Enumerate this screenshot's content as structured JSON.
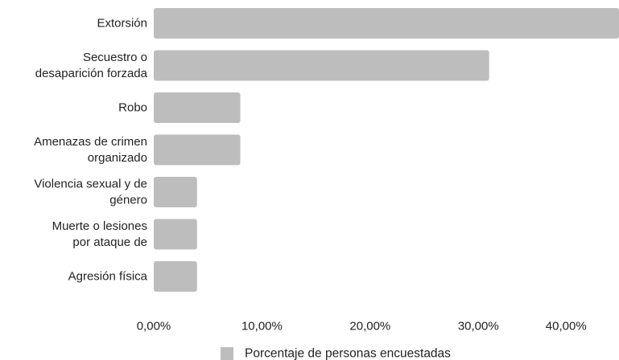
{
  "chart_data": {
    "type": "bar",
    "orientation": "horizontal",
    "categories": [
      [
        "Extorsión"
      ],
      [
        "Secuestro o",
        "desaparición forzada"
      ],
      [
        "Robo"
      ],
      [
        "Amenazas de crimen",
        "organizado"
      ],
      [
        "Violencia sexual y de",
        "género"
      ],
      [
        "Muerte o lesiones",
        "por ataque de"
      ],
      [
        "Agresión física"
      ]
    ],
    "series": [
      {
        "name": "Porcentaje de personas encuestadas",
        "values": [
          43.0,
          31.0,
          8.0,
          8.0,
          4.0,
          4.0,
          4.0
        ]
      }
    ],
    "xlim": [
      0,
      43
    ],
    "xticks": [
      0,
      10,
      20,
      30,
      40
    ],
    "xtick_labels": [
      "0,00%",
      "10,00%",
      "20,00%",
      "30,00%",
      "40,00%"
    ],
    "title": "",
    "xlabel": "",
    "ylabel": "",
    "grid": false,
    "legend_position": "bottom",
    "colors": {
      "bar": "#bdbdbd",
      "text": "#222222"
    }
  }
}
